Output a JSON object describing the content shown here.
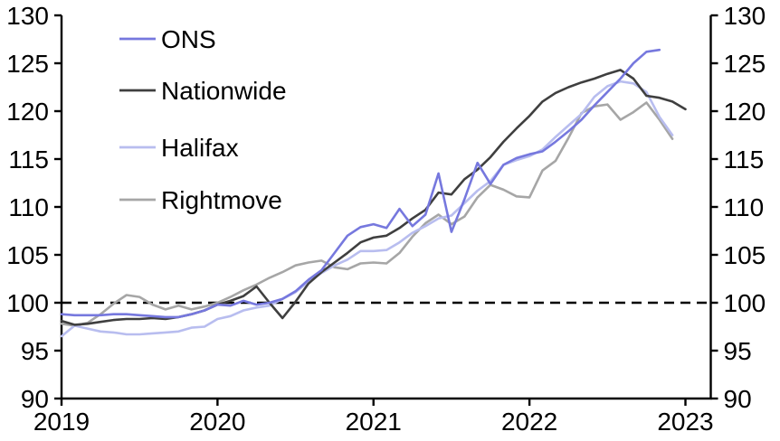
{
  "chart_data": {
    "type": "line",
    "title": "",
    "x_start": "2019-01",
    "frequency": "monthly",
    "x_tick_labels": [
      "2019",
      "2020",
      "2021",
      "2022",
      "2023"
    ],
    "y_ticks": [
      90,
      95,
      100,
      105,
      110,
      115,
      120,
      125,
      130
    ],
    "ylim": [
      90,
      130
    ],
    "xlim_months": [
      0,
      49.9
    ],
    "grid": false,
    "legend_position": "top-left",
    "axis_color": "#000000",
    "reference_line": {
      "value": 100,
      "style": "dashed",
      "color": "#000000"
    },
    "series": [
      {
        "name": "Rightmove",
        "color": "#a6a6a6",
        "values": [
          97.8,
          97.6,
          97.9,
          98.8,
          99.9,
          100.8,
          100.6,
          99.8,
          99.3,
          99.7,
          99.3,
          99.6,
          100.0,
          100.6,
          101.3,
          101.9,
          102.6,
          103.2,
          103.9,
          104.2,
          104.4,
          103.7,
          103.5,
          104.1,
          104.2,
          104.1,
          105.2,
          106.9,
          108.3,
          109.2,
          108.2,
          109.0,
          111.0,
          112.3,
          111.8,
          111.1,
          111.0,
          113.8,
          114.8,
          117.2,
          119.8,
          120.5,
          120.7,
          119.1,
          119.9,
          120.9,
          119.1,
          117.1
        ]
      },
      {
        "name": "Halifax",
        "color": "#b8bdef",
        "values": [
          96.5,
          97.6,
          97.3,
          97.0,
          96.9,
          96.7,
          96.7,
          96.8,
          96.9,
          97.0,
          97.4,
          97.5,
          98.3,
          98.6,
          99.2,
          99.5,
          99.7,
          100.4,
          101.1,
          102.2,
          103.1,
          103.9,
          104.5,
          105.4,
          105.4,
          105.5,
          106.3,
          107.3,
          108.0,
          108.8,
          109.1,
          110.4,
          111.7,
          112.7,
          114.4,
          114.9,
          115.3,
          116.0,
          117.3,
          118.5,
          119.7,
          121.5,
          122.6,
          123.1,
          122.9,
          122.0,
          119.4,
          117.5
        ]
      },
      {
        "name": "Nationwide",
        "color": "#3f3f3f",
        "values": [
          98.1,
          97.7,
          97.8,
          98.0,
          98.2,
          98.3,
          98.3,
          98.4,
          98.3,
          98.5,
          98.8,
          99.2,
          99.8,
          100.2,
          100.7,
          101.7,
          100.0,
          98.4,
          100.1,
          102.0,
          103.2,
          104.2,
          105.2,
          106.3,
          106.8,
          107.0,
          107.8,
          108.8,
          109.7,
          111.5,
          111.3,
          112.9,
          113.9,
          115.2,
          116.8,
          118.2,
          119.5,
          121.0,
          121.9,
          122.5,
          123.0,
          123.4,
          123.9,
          124.3,
          123.4,
          121.6,
          121.4,
          121.0,
          120.2
        ]
      },
      {
        "name": "ONS",
        "color": "#7678de",
        "values": [
          98.8,
          98.7,
          98.7,
          98.7,
          98.8,
          98.8,
          98.7,
          98.6,
          98.5,
          98.5,
          98.8,
          99.2,
          99.8,
          99.7,
          100.2,
          99.8,
          100.0,
          100.4,
          101.2,
          102.4,
          103.4,
          105.2,
          107.0,
          107.9,
          108.2,
          107.8,
          109.8,
          108.0,
          109.2,
          113.5,
          107.4,
          110.8,
          114.6,
          112.4,
          114.4,
          115.1,
          115.5,
          115.8,
          116.8,
          117.9,
          119.1,
          120.6,
          122.0,
          123.4,
          125.0,
          126.2,
          126.4
        ]
      }
    ],
    "legend_order": [
      "ONS",
      "Nationwide",
      "Halifax",
      "Rightmove"
    ]
  }
}
